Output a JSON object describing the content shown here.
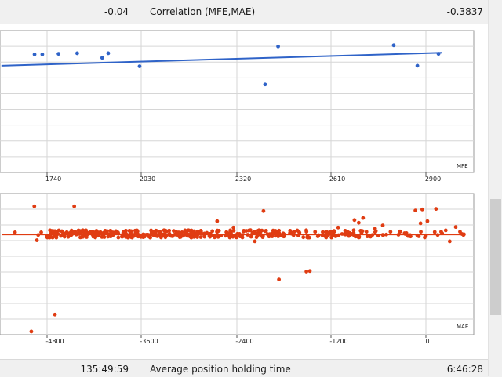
{
  "stats_rows": {
    "top": {
      "left_value": "-0.04",
      "label": "Correlation (MFE,MAE)",
      "right_value": "-0.3837"
    },
    "bottom": {
      "left_value": "135:49:59",
      "label": "Average position holding time",
      "right_value": "6:46:28"
    }
  },
  "chart_data": [
    {
      "type": "scatter",
      "xlabel": "MFE",
      "x_ticks": [
        "1740",
        "2030",
        "2320",
        "2610",
        "2900"
      ],
      "series_color": "#2f63c8",
      "series": [
        {
          "points": [
            [
              1694,
              1.9
            ],
            [
              1716,
              1.9
            ],
            [
              1762,
              1.95
            ],
            [
              1815,
              2.0
            ],
            [
              1886,
              1.6
            ],
            [
              1903,
              2.0
            ],
            [
              1992,
              0.85
            ],
            [
              2348,
              -0.75
            ],
            [
              2385,
              2.6
            ],
            [
              2713,
              2.7
            ],
            [
              2780,
              0.9
            ],
            [
              2840,
              1.95
            ]
          ]
        }
      ],
      "trend_line": [
        [
          1600,
          0.9
        ],
        [
          2850,
          2.05
        ]
      ]
    },
    {
      "type": "scatter",
      "xlabel": "MAE",
      "x_ticks": [
        "-4800",
        "-3600",
        "-2400",
        "-1200",
        "0"
      ],
      "series_color": "#e03c12",
      "series": [
        {
          "points": [
            [
              -5245,
              0.45
            ],
            [
              -5055,
              -8.9
            ],
            [
              -5020,
              2.9
            ],
            [
              -4990,
              -0.3
            ],
            [
              -4975,
              0.2
            ],
            [
              -4940,
              0.45
            ],
            [
              -4870,
              0.1
            ],
            [
              -4830,
              0.3
            ],
            [
              -4780,
              -7.3
            ],
            [
              -4745,
              0.3
            ],
            [
              -4560,
              0.4
            ],
            [
              -4555,
              2.9
            ],
            [
              -4440,
              0.3
            ],
            [
              -4380,
              0.4
            ],
            [
              -4290,
              0.2
            ],
            [
              -3960,
              0.3
            ],
            [
              -3900,
              0.35
            ],
            [
              -3860,
              0.1
            ],
            [
              -3840,
              0.45
            ],
            [
              -3490,
              0.6
            ],
            [
              -3440,
              0.2
            ],
            [
              -3300,
              0.45
            ],
            [
              -3180,
              0.35
            ],
            [
              -3150,
              0.2
            ],
            [
              -3010,
              0.4
            ],
            [
              -2890,
              1.5
            ],
            [
              -2700,
              0.9
            ],
            [
              -2630,
              0.3
            ],
            [
              -2450,
              -0.4
            ],
            [
              -2350,
              2.45
            ],
            [
              -2320,
              0.6
            ],
            [
              -2170,
              -4.0
            ],
            [
              -2120,
              0.35
            ],
            [
              -2040,
              0.6
            ],
            [
              -1850,
              -3.25
            ],
            [
              -1810,
              -3.2
            ],
            [
              -1600,
              0.4
            ],
            [
              -1480,
              0.9
            ],
            [
              -1290,
              1.6
            ],
            [
              -1240,
              1.35
            ],
            [
              -1190,
              1.8
            ],
            [
              -1150,
              0.5
            ],
            [
              -1050,
              0.8
            ],
            [
              -960,
              1.1
            ],
            [
              -760,
              0.5
            ],
            [
              -580,
              2.5
            ],
            [
              -520,
              1.3
            ],
            [
              -500,
              2.6
            ],
            [
              -440,
              1.5
            ],
            [
              -340,
              2.65
            ],
            [
              -280,
              0.5
            ],
            [
              -180,
              -0.4
            ],
            [
              -110,
              0.95
            ],
            [
              -60,
              0.5
            ],
            [
              -20,
              0.2
            ]
          ]
        }
      ],
      "dense_band": {
        "x_from": -4900,
        "x_to": 0,
        "y_center": 0.3,
        "spread": 0.35
      },
      "trend_line": [
        [
          -5400,
          0.25
        ],
        [
          0,
          0.25
        ]
      ]
    }
  ],
  "icons": {
    "scrollbar": "vertical-scrollbar"
  }
}
